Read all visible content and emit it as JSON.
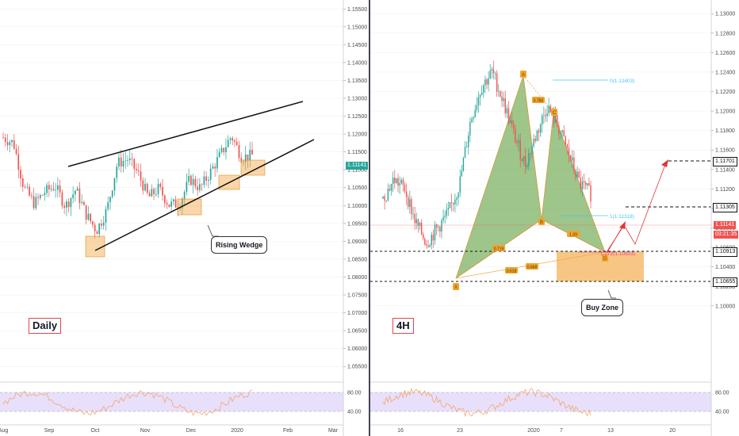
{
  "panels": {
    "left": {
      "timeframe": "Daily",
      "pattern_label": "Rising Wedge",
      "current_price": "1.11141"
    },
    "right": {
      "timeframe": "4H",
      "zone_label": "Buy Zone",
      "current_price": "1.11141",
      "countdown": "03:21:35",
      "target_levels": [
        "1.11701",
        "1.11305"
      ],
      "zone_levels": [
        "1.10913",
        "1.10655"
      ]
    }
  },
  "chart_data": [
    {
      "type": "candlestick",
      "name": "Daily",
      "ylim": [
        1.0515,
        1.1575
      ],
      "y_ticks": [
        "1.15500",
        "1.15000",
        "1.14500",
        "1.14000",
        "1.13500",
        "1.13000",
        "1.12500",
        "1.12000",
        "1.11500",
        "1.11000",
        "1.10500",
        "1.10000",
        "1.09500",
        "1.09000",
        "1.08500",
        "1.08000",
        "1.07500",
        "1.07000",
        "1.06500",
        "1.06000",
        "1.05500"
      ],
      "x_ticks": [
        "Aug",
        "Sep",
        "Oct",
        "Nov",
        "Dec",
        "2020",
        "Feb",
        "Mar"
      ],
      "close_path": [
        1.119,
        1.1175,
        1.105,
        1.1005,
        1.1038,
        1.1055,
        1.0998,
        1.1045,
        1.0975,
        1.093,
        1.0988,
        1.1118,
        1.113,
        1.109,
        1.1022,
        1.1048,
        1.1002,
        1.1005,
        1.1075,
        1.1048,
        1.1095,
        1.1145,
        1.1195,
        1.1135,
        1.114
      ],
      "wedge_upper": [
        [
          1.1075,
          "Sep"
        ],
        [
          1.1285,
          "Feb"
        ]
      ],
      "wedge_lower": [
        [
          1.0875,
          "Oct"
        ],
        [
          1.1185,
          "Feb"
        ]
      ],
      "rsi": {
        "levels": [
          80,
          40
        ]
      }
    },
    {
      "type": "candlestick",
      "name": "4H",
      "ylim": [
        1.0925,
        1.1314
      ],
      "y_ticks": [
        "1.13000",
        "1.12800",
        "1.12600",
        "1.12400",
        "1.12200",
        "1.12000",
        "1.11800",
        "1.11600",
        "1.11400",
        "1.11200",
        "1.11000",
        "1.10800",
        "1.10600",
        "1.10400",
        "1.10200",
        "1.10000"
      ],
      "x_ticks": [
        "16",
        "23",
        "2020",
        "7",
        "13",
        "20"
      ],
      "close_path": [
        1.111,
        1.113,
        1.112,
        1.1085,
        1.1065,
        1.108,
        1.1095,
        1.1125,
        1.119,
        1.1225,
        1.124,
        1.121,
        1.1175,
        1.1145,
        1.1175,
        1.1205,
        1.1185,
        1.1155,
        1.1125,
        1.1115
      ],
      "harmonic_points": [
        {
          "label": "X",
          "value": 1.1066
        },
        {
          "label": "A",
          "value": 1.124
        },
        {
          "label": "B",
          "value": 1.1138
        },
        {
          "label": "C",
          "value": 1.1205
        },
        {
          "label": "D",
          "value": 1.1091
        }
      ],
      "ratios": [
        "0.786",
        "0.719",
        "1.39",
        "0.668",
        "0.618"
      ],
      "projections": [
        {
          "label": "0(1.12403)",
          "value": 1.12403
        },
        {
          "label": "1(1.11318)",
          "value": 1.11318
        },
        {
          "label": "1.272(1.10923)",
          "value": 1.10923
        }
      ],
      "rsi": {
        "levels": [
          80,
          40
        ]
      }
    }
  ],
  "colors": {
    "candle_up": "#26a69a",
    "candle_down": "#ef5350",
    "harmonic_fill": "#5d9e3c",
    "zone_fill": "#f4a742",
    "projection": "#40c9ff",
    "rsi_band": "#d6c4f5",
    "rsi_line": "#f6a56f",
    "target_arrow": "#e0353a"
  }
}
